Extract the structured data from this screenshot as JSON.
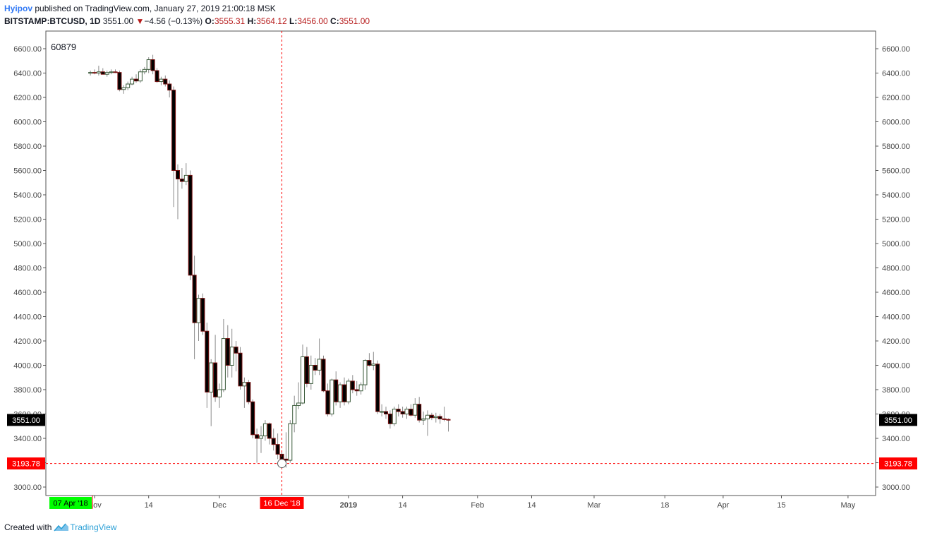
{
  "header": {
    "author": "Hyipov",
    "published_text": "published on TradingView.com, January 27, 2019 21:00:18 MSK",
    "symbol": "BITSTAMP:BTCUSD, 1D",
    "last": "3551.00",
    "change": "−4.56 (−0.13%)",
    "o_label": "O:",
    "o_value": "3555.31",
    "h_label": "H:",
    "h_value": "3564.12",
    "l_label": "L:",
    "l_value": "3456.00",
    "c_label": "C:",
    "c_value": "3551.00"
  },
  "footer": {
    "created_with": "Created with",
    "brand": "TradingView"
  },
  "colors": {
    "down_fill": "#000000",
    "up_fill": "#ffffff",
    "wick": "#8a8a8a",
    "crosshair": "#ff0000",
    "axis_text": "#4a4a4a",
    "date_label_green": "#00ff00"
  },
  "chart_data": {
    "type": "candlestick",
    "title": "",
    "ylim": [
      2950,
      6700
    ],
    "y_ticks": [
      "6600.00",
      "6400.00",
      "6200.00",
      "6000.00",
      "5800.00",
      "5600.00",
      "5400.00",
      "5200.00",
      "5000.00",
      "4800.00",
      "4600.00",
      "4400.00",
      "4200.00",
      "4000.00",
      "3800.00",
      "3600.00",
      "3400.00",
      "3200.00",
      "3000.00"
    ],
    "x_ticks": [
      {
        "label": "Nov",
        "day": 0
      },
      {
        "label": "14",
        "day": 13
      },
      {
        "label": "Dec",
        "day": 30
      },
      {
        "label": "2019",
        "day": 61
      },
      {
        "label": "14",
        "day": 74
      },
      {
        "label": "Feb",
        "day": 92
      },
      {
        "label": "14",
        "day": 105
      },
      {
        "label": "Mar",
        "day": 120
      },
      {
        "label": "18",
        "day": 137
      },
      {
        "label": "Apr",
        "day": 151
      },
      {
        "label": "15",
        "day": 165
      },
      {
        "label": "May",
        "day": 181
      }
    ],
    "volume_label": "60879",
    "last_price_label": "3551.00",
    "last_price": 3551,
    "crosshair_price_label": "3193.78",
    "crosshair_price": 3193.78,
    "crosshair_date_label": "16 Dec '18",
    "crosshair_day": 45,
    "left_date_label": "07 Apr '18",
    "candles": [
      {
        "d": -1,
        "o": 6400,
        "h": 6420,
        "l": 6380,
        "c": 6405
      },
      {
        "d": 0,
        "o": 6405,
        "h": 6430,
        "l": 6390,
        "c": 6400
      },
      {
        "d": 1,
        "o": 6400,
        "h": 6460,
        "l": 6380,
        "c": 6410
      },
      {
        "d": 2,
        "o": 6410,
        "h": 6440,
        "l": 6390,
        "c": 6390
      },
      {
        "d": 3,
        "o": 6390,
        "h": 6420,
        "l": 6370,
        "c": 6405
      },
      {
        "d": 4,
        "o": 6405,
        "h": 6430,
        "l": 6390,
        "c": 6410
      },
      {
        "d": 5,
        "o": 6410,
        "h": 6430,
        "l": 6400,
        "c": 6405
      },
      {
        "d": 6,
        "o": 6405,
        "h": 6420,
        "l": 6250,
        "c": 6265
      },
      {
        "d": 7,
        "o": 6265,
        "h": 6300,
        "l": 6230,
        "c": 6280
      },
      {
        "d": 8,
        "o": 6280,
        "h": 6330,
        "l": 6260,
        "c": 6310
      },
      {
        "d": 9,
        "o": 6310,
        "h": 6370,
        "l": 6300,
        "c": 6350
      },
      {
        "d": 10,
        "o": 6350,
        "h": 6390,
        "l": 6320,
        "c": 6335
      },
      {
        "d": 11,
        "o": 6335,
        "h": 6430,
        "l": 6320,
        "c": 6410
      },
      {
        "d": 12,
        "o": 6410,
        "h": 6450,
        "l": 6390,
        "c": 6430
      },
      {
        "d": 13,
        "o": 6430,
        "h": 6530,
        "l": 6400,
        "c": 6510
      },
      {
        "d": 14,
        "o": 6510,
        "h": 6550,
        "l": 6390,
        "c": 6420
      },
      {
        "d": 15,
        "o": 6420,
        "h": 6440,
        "l": 6320,
        "c": 6330
      },
      {
        "d": 16,
        "o": 6330,
        "h": 6370,
        "l": 6300,
        "c": 6350
      },
      {
        "d": 17,
        "o": 6350,
        "h": 6380,
        "l": 6290,
        "c": 6310
      },
      {
        "d": 18,
        "o": 6310,
        "h": 6340,
        "l": 6200,
        "c": 6260
      },
      {
        "d": 19,
        "o": 6260,
        "h": 6290,
        "l": 5300,
        "c": 5600
      },
      {
        "d": 20,
        "o": 5600,
        "h": 5650,
        "l": 5200,
        "c": 5530
      },
      {
        "d": 21,
        "o": 5530,
        "h": 5620,
        "l": 5450,
        "c": 5510
      },
      {
        "d": 22,
        "o": 5510,
        "h": 5660,
        "l": 5480,
        "c": 5560
      },
      {
        "d": 23,
        "o": 5560,
        "h": 5600,
        "l": 4700,
        "c": 4740
      },
      {
        "d": 24,
        "o": 4740,
        "h": 4900,
        "l": 4050,
        "c": 4350
      },
      {
        "d": 25,
        "o": 4350,
        "h": 4580,
        "l": 4200,
        "c": 4550
      },
      {
        "d": 26,
        "o": 4550,
        "h": 4590,
        "l": 4250,
        "c": 4280
      },
      {
        "d": 27,
        "o": 4280,
        "h": 4350,
        "l": 3650,
        "c": 3780
      },
      {
        "d": 28,
        "o": 3780,
        "h": 4050,
        "l": 3500,
        "c": 4020
      },
      {
        "d": 29,
        "o": 4020,
        "h": 4250,
        "l": 3700,
        "c": 3740
      },
      {
        "d": 30,
        "o": 3740,
        "h": 3850,
        "l": 3650,
        "c": 3800
      },
      {
        "d": 31,
        "o": 3800,
        "h": 4380,
        "l": 3780,
        "c": 4220
      },
      {
        "d": 32,
        "o": 4220,
        "h": 4330,
        "l": 3900,
        "c": 4000
      },
      {
        "d": 33,
        "o": 4000,
        "h": 4300,
        "l": 3900,
        "c": 4150
      },
      {
        "d": 34,
        "o": 4150,
        "h": 4200,
        "l": 3950,
        "c": 4100
      },
      {
        "d": 35,
        "o": 4100,
        "h": 4150,
        "l": 3800,
        "c": 3830
      },
      {
        "d": 36,
        "o": 3830,
        "h": 3900,
        "l": 3650,
        "c": 3860
      },
      {
        "d": 37,
        "o": 3860,
        "h": 3880,
        "l": 3680,
        "c": 3700
      },
      {
        "d": 38,
        "o": 3700,
        "h": 3720,
        "l": 3400,
        "c": 3430
      },
      {
        "d": 39,
        "o": 3430,
        "h": 3480,
        "l": 3200,
        "c": 3400
      },
      {
        "d": 40,
        "o": 3400,
        "h": 3500,
        "l": 3280,
        "c": 3420
      },
      {
        "d": 41,
        "o": 3420,
        "h": 3550,
        "l": 3380,
        "c": 3520
      },
      {
        "d": 42,
        "o": 3520,
        "h": 3530,
        "l": 3350,
        "c": 3400
      },
      {
        "d": 43,
        "o": 3400,
        "h": 3480,
        "l": 3300,
        "c": 3350
      },
      {
        "d": 44,
        "o": 3350,
        "h": 3440,
        "l": 3230,
        "c": 3270
      },
      {
        "d": 45,
        "o": 3270,
        "h": 3300,
        "l": 3210,
        "c": 3230
      },
      {
        "d": 46,
        "o": 3230,
        "h": 3450,
        "l": 3160,
        "c": 3220
      },
      {
        "d": 47,
        "o": 3220,
        "h": 3550,
        "l": 3200,
        "c": 3520
      },
      {
        "d": 48,
        "o": 3520,
        "h": 3750,
        "l": 3450,
        "c": 3670
      },
      {
        "d": 49,
        "o": 3670,
        "h": 3860,
        "l": 3640,
        "c": 3690
      },
      {
        "d": 50,
        "o": 3690,
        "h": 4170,
        "l": 3680,
        "c": 4070
      },
      {
        "d": 51,
        "o": 4070,
        "h": 4150,
        "l": 3820,
        "c": 3850
      },
      {
        "d": 52,
        "o": 3850,
        "h": 4080,
        "l": 3800,
        "c": 4000
      },
      {
        "d": 53,
        "o": 4000,
        "h": 4060,
        "l": 3920,
        "c": 3960
      },
      {
        "d": 54,
        "o": 3960,
        "h": 4220,
        "l": 3920,
        "c": 4050
      },
      {
        "d": 55,
        "o": 4050,
        "h": 4080,
        "l": 3780,
        "c": 3790
      },
      {
        "d": 56,
        "o": 3790,
        "h": 3850,
        "l": 3580,
        "c": 3600
      },
      {
        "d": 57,
        "o": 3600,
        "h": 3890,
        "l": 3580,
        "c": 3880
      },
      {
        "d": 58,
        "o": 3880,
        "h": 3950,
        "l": 3670,
        "c": 3700
      },
      {
        "d": 59,
        "o": 3700,
        "h": 3860,
        "l": 3650,
        "c": 3840
      },
      {
        "d": 60,
        "o": 3840,
        "h": 3900,
        "l": 3670,
        "c": 3700
      },
      {
        "d": 61,
        "o": 3700,
        "h": 3890,
        "l": 3680,
        "c": 3870
      },
      {
        "d": 62,
        "o": 3870,
        "h": 3920,
        "l": 3770,
        "c": 3800
      },
      {
        "d": 63,
        "o": 3800,
        "h": 3870,
        "l": 3750,
        "c": 3790
      },
      {
        "d": 64,
        "o": 3790,
        "h": 3860,
        "l": 3760,
        "c": 3840
      },
      {
        "d": 65,
        "o": 3840,
        "h": 4050,
        "l": 3800,
        "c": 4040
      },
      {
        "d": 66,
        "o": 4040,
        "h": 4100,
        "l": 3990,
        "c": 4000
      },
      {
        "d": 67,
        "o": 4000,
        "h": 4110,
        "l": 3960,
        "c": 4010
      },
      {
        "d": 68,
        "o": 4010,
        "h": 4040,
        "l": 3600,
        "c": 3620
      },
      {
        "d": 69,
        "o": 3620,
        "h": 3680,
        "l": 3580,
        "c": 3620
      },
      {
        "d": 70,
        "o": 3620,
        "h": 3660,
        "l": 3560,
        "c": 3600
      },
      {
        "d": 71,
        "o": 3600,
        "h": 3630,
        "l": 3480,
        "c": 3520
      },
      {
        "d": 72,
        "o": 3520,
        "h": 3660,
        "l": 3500,
        "c": 3640
      },
      {
        "d": 73,
        "o": 3640,
        "h": 3680,
        "l": 3580,
        "c": 3620
      },
      {
        "d": 74,
        "o": 3620,
        "h": 3660,
        "l": 3570,
        "c": 3600
      },
      {
        "d": 75,
        "o": 3600,
        "h": 3660,
        "l": 3560,
        "c": 3640
      },
      {
        "d": 76,
        "o": 3640,
        "h": 3680,
        "l": 3580,
        "c": 3590
      },
      {
        "d": 77,
        "o": 3590,
        "h": 3730,
        "l": 3570,
        "c": 3680
      },
      {
        "d": 78,
        "o": 3680,
        "h": 3740,
        "l": 3530,
        "c": 3550
      },
      {
        "d": 79,
        "o": 3550,
        "h": 3620,
        "l": 3510,
        "c": 3560
      },
      {
        "d": 80,
        "o": 3560,
        "h": 3630,
        "l": 3420,
        "c": 3590
      },
      {
        "d": 81,
        "o": 3590,
        "h": 3610,
        "l": 3550,
        "c": 3570
      },
      {
        "d": 82,
        "o": 3570,
        "h": 3610,
        "l": 3530,
        "c": 3580
      },
      {
        "d": 83,
        "o": 3580,
        "h": 3600,
        "l": 3520,
        "c": 3560
      },
      {
        "d": 84,
        "o": 3560,
        "h": 3660,
        "l": 3540,
        "c": 3555
      },
      {
        "d": 85,
        "o": 3555.31,
        "h": 3564.12,
        "l": 3456,
        "c": 3551
      }
    ]
  }
}
